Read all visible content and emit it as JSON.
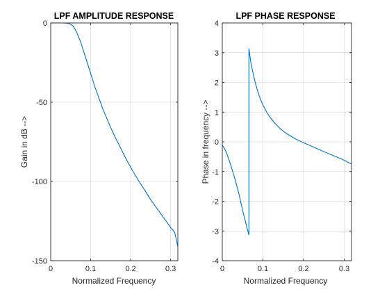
{
  "chart_data": [
    {
      "type": "line",
      "title": "LPF AMPLITUDE RESPONSE",
      "xlabel": "Normalized Frequency",
      "ylabel": "Gain in dB -->",
      "xlim": [
        0,
        0.318
      ],
      "ylim": [
        -150,
        0
      ],
      "xticks": [
        0,
        0.1,
        0.2,
        0.3
      ],
      "xtick_labels": [
        "0",
        "0.1",
        "0.2",
        "0.3"
      ],
      "yticks": [
        -150,
        -100,
        -50,
        0
      ],
      "ytick_labels": [
        "-150",
        "-100",
        "-50",
        "0"
      ],
      "grid": true,
      "line_color": "#0072BD",
      "series": [
        {
          "x": [
            0,
            0.01,
            0.02,
            0.03,
            0.04,
            0.045,
            0.05,
            0.055,
            0.06,
            0.065,
            0.07,
            0.075,
            0.08,
            0.085,
            0.09,
            0.095,
            0.1,
            0.11,
            0.12,
            0.13,
            0.14,
            0.15,
            0.16,
            0.17,
            0.18,
            0.19,
            0.2,
            0.21,
            0.22,
            0.23,
            0.24,
            0.25,
            0.26,
            0.27,
            0.28,
            0.29,
            0.3,
            0.31,
            0.318
          ],
          "y": [
            0,
            0,
            0,
            0,
            -0.1,
            -0.3,
            -0.8,
            -1.8,
            -3.5,
            -6,
            -9,
            -12,
            -16,
            -20,
            -24,
            -28,
            -32,
            -40,
            -47,
            -54,
            -60,
            -66,
            -71.5,
            -76.5,
            -81.5,
            -86.5,
            -91,
            -95.5,
            -99.5,
            -103.5,
            -107.5,
            -111.5,
            -115,
            -118.5,
            -122,
            -125.5,
            -129,
            -132,
            -141
          ]
        }
      ]
    },
    {
      "type": "line",
      "title": "LPF PHASE RESPONSE",
      "xlabel": "Normalized Frequency",
      "ylabel": "Phase in frequency -->",
      "xlim": [
        0,
        0.318
      ],
      "ylim": [
        -4,
        4
      ],
      "xticks": [
        0,
        0.1,
        0.2,
        0.3
      ],
      "xtick_labels": [
        "0",
        "0.1",
        "0.2",
        "0.3"
      ],
      "yticks": [
        -4,
        -3,
        -2,
        -1,
        0,
        1,
        2,
        3,
        4
      ],
      "ytick_labels": [
        "-4",
        "-3",
        "-2",
        "-1",
        "0",
        "1",
        "2",
        "3",
        "4"
      ],
      "grid": true,
      "line_color": "#0072BD",
      "series": [
        {
          "x": [
            0,
            0.01,
            0.02,
            0.03,
            0.04,
            0.05,
            0.06,
            0.0655,
            0.0655,
            0.07,
            0.075,
            0.08,
            0.085,
            0.09,
            0.095,
            0.1,
            0.11,
            0.12,
            0.13,
            0.14,
            0.15,
            0.16,
            0.18,
            0.2,
            0.22,
            0.25,
            0.28,
            0.3,
            0.318
          ],
          "y": [
            -0.1,
            -0.35,
            -0.75,
            -1.2,
            -1.7,
            -2.3,
            -2.85,
            -3.14,
            3.14,
            2.7,
            2.35,
            2.05,
            1.8,
            1.58,
            1.4,
            1.24,
            0.98,
            0.78,
            0.62,
            0.48,
            0.36,
            0.26,
            0.1,
            -0.03,
            -0.15,
            -0.33,
            -0.5,
            -0.62,
            -0.75
          ]
        }
      ]
    }
  ]
}
